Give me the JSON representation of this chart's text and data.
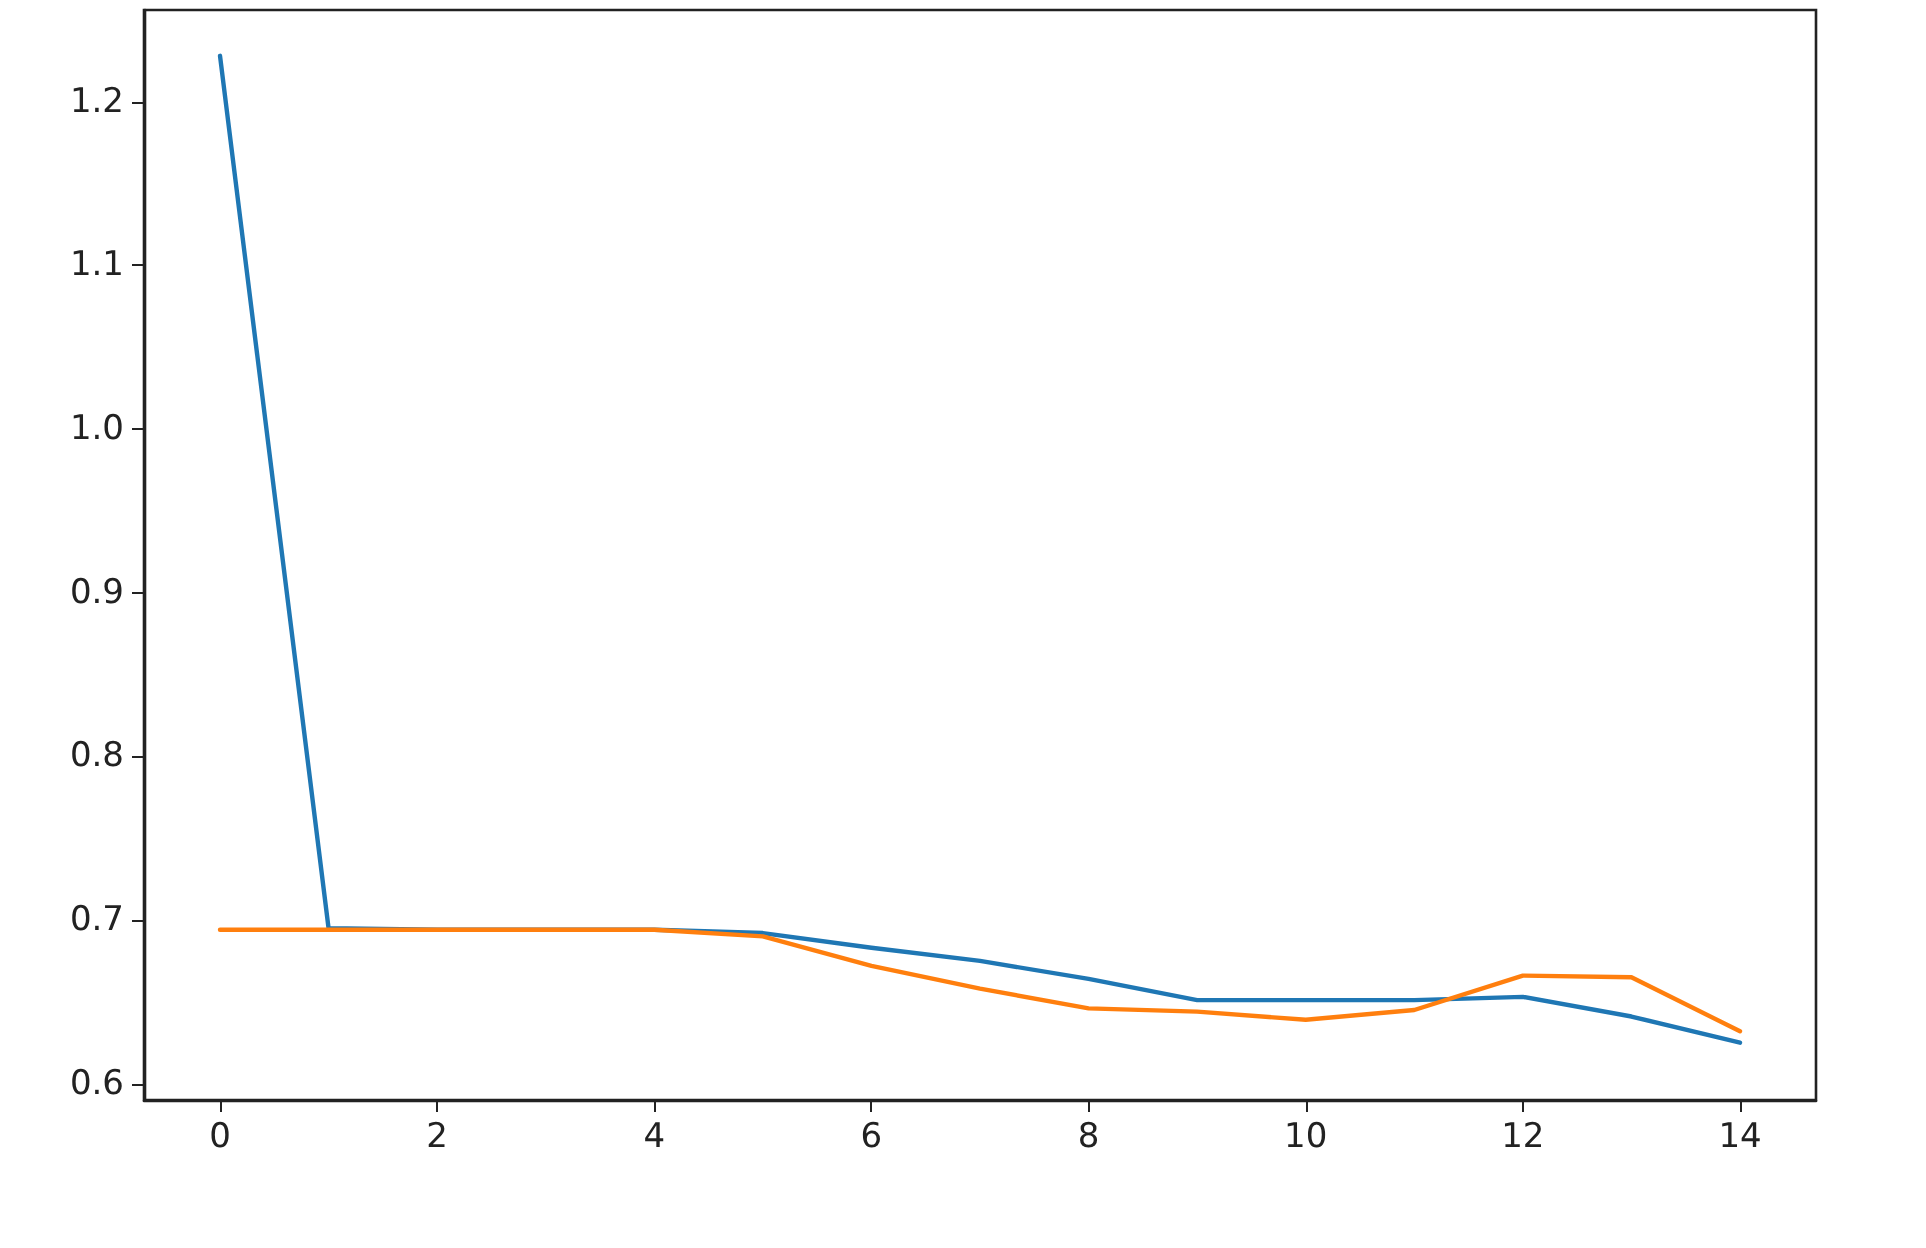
{
  "chart_data": {
    "type": "line",
    "x": [
      0,
      1,
      2,
      3,
      4,
      5,
      6,
      7,
      8,
      9,
      10,
      11,
      12,
      13,
      14
    ],
    "series": [
      {
        "color": "#1f77b4",
        "values": [
          1.228,
          0.695,
          0.694,
          0.694,
          0.694,
          0.692,
          0.683,
          0.675,
          0.664,
          0.651,
          0.651,
          0.651,
          0.653,
          0.641,
          0.625
        ]
      },
      {
        "color": "#ff7f0e",
        "values": [
          0.694,
          0.694,
          0.694,
          0.694,
          0.694,
          0.69,
          0.672,
          0.658,
          0.646,
          0.644,
          0.639,
          0.645,
          0.666,
          0.665,
          0.632
        ]
      }
    ],
    "xlim": [
      -0.7,
      14.7
    ],
    "xticks": [
      0,
      2,
      4,
      6,
      8,
      10,
      12,
      14
    ],
    "ylim": [
      0.59,
      1.256
    ],
    "yticks": [
      0.6,
      0.7,
      0.8,
      0.9,
      {
        "value": 1,
        "label": "1.0"
      },
      1.1,
      1.2
    ],
    "grid": false,
    "marker": "none",
    "line_style": "solid"
  }
}
